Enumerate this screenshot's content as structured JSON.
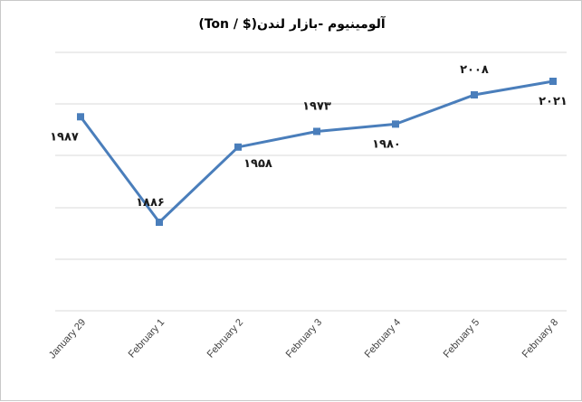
{
  "chart_data": {
    "type": "line",
    "title": "آلومینیوم -بازار لندن($ / Ton)",
    "categories": [
      "January 29",
      "February 1",
      "February 2",
      "February 3",
      "February 4",
      "February 5",
      "February 8"
    ],
    "series": [
      {
        "values": [
          1987,
          1886,
          1958,
          1973,
          1980,
          2008,
          2021
        ],
        "data_labels": [
          "۱۹۸۷",
          "۱۸۸۶",
          "۱۹۵۸",
          "۱۹۷۳",
          "۱۹۸۰",
          "۲۰۰۸",
          "۲۰۲۱"
        ],
        "color": "#4a7ebb"
      }
    ],
    "ylim": [
      1800,
      2050
    ],
    "grid": true,
    "legend": "none",
    "xlabel": "",
    "ylabel": ""
  }
}
